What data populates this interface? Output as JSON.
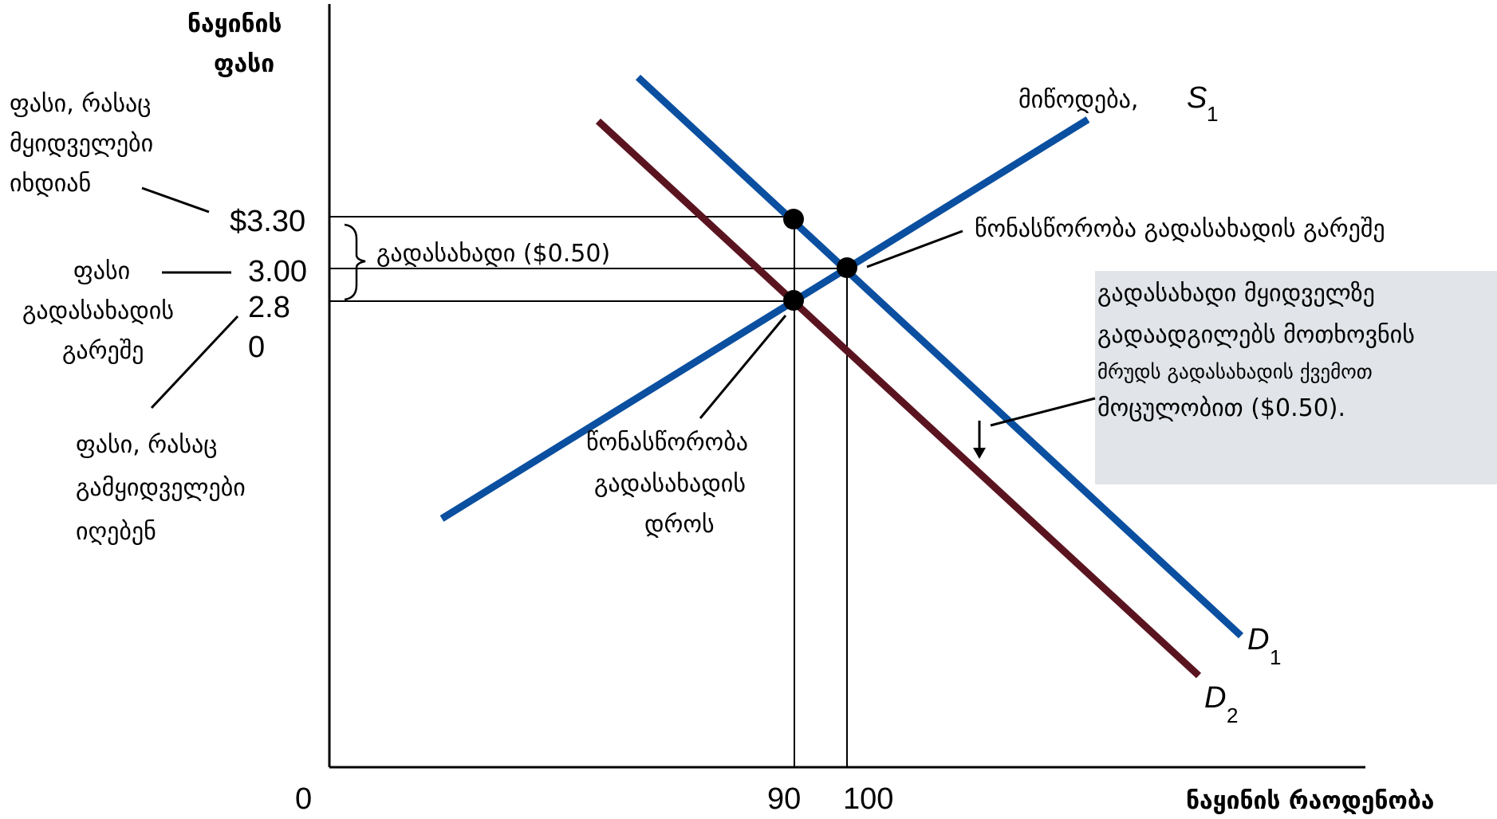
{
  "chart_data": {
    "type": "line",
    "title": "",
    "xlabel": "ნაყინის რაოდენობა",
    "ylabel_lines": [
      "ნაყინის",
      "ფასი"
    ],
    "x_origin_label": "0",
    "x_ticks": [
      {
        "value": 90,
        "label": "90"
      },
      {
        "value": 100,
        "label": "100"
      }
    ],
    "y_ticks": [
      {
        "value": 3.3,
        "label": "$3.30"
      },
      {
        "value": 3.0,
        "label": "3.00"
      },
      {
        "value": 2.8,
        "label": "2.8"
      },
      {
        "value": 0,
        "label": "0"
      }
    ],
    "series": [
      {
        "name": "S1",
        "label_main": "S",
        "label_sub": "1",
        "prefix": "მიწოდება,",
        "color": "#0a4fa0",
        "points": [
          [
            90,
            2.8
          ],
          [
            100,
            3.0
          ]
        ]
      },
      {
        "name": "D1",
        "label_main": "D",
        "label_sub": "1",
        "color": "#0a4fa0",
        "points": [
          [
            90,
            3.3
          ],
          [
            100,
            3.0
          ]
        ]
      },
      {
        "name": "D2",
        "label_main": "D",
        "label_sub": "2",
        "color": "#5a1420",
        "points": [
          [
            90,
            2.8
          ]
        ]
      }
    ],
    "equilibria": [
      {
        "name": "tax-buyer-point",
        "x": 90,
        "y": 3.3
      },
      {
        "name": "no-tax-equilibrium",
        "x": 100,
        "y": 3.0
      },
      {
        "name": "tax-seller-point",
        "x": 90,
        "y": 2.8
      }
    ],
    "annotations": {
      "buyers_pay": [
        "ფასი, რასაც",
        "მყიდველები",
        "იხდიან"
      ],
      "price_no_tax": [
        "ფასი",
        "გადასახადის",
        "გარეშე"
      ],
      "sellers_get": [
        "ფასი, რასაც",
        "გამყიდველები",
        "იღებენ"
      ],
      "tax_bracket": "გადასახადი ($0.50)",
      "eq_no_tax": "წონასწორობა გადასახადის გარეშე",
      "eq_with_tax": [
        "წონასწორობა",
        "გადასახადის",
        "დროს"
      ],
      "shift_box": [
        "გადასახადი მყიდველზე",
        "გადაადგილებს მოთხოვნის",
        "მრუდს გადასახადის ქვემოთ",
        "მოცულობით ($0.50)."
      ]
    },
    "colors": {
      "supply": "#0a4fa0",
      "demand1": "#0a4fa0",
      "demand2": "#5a1420",
      "box": "#e1e4e8"
    }
  }
}
